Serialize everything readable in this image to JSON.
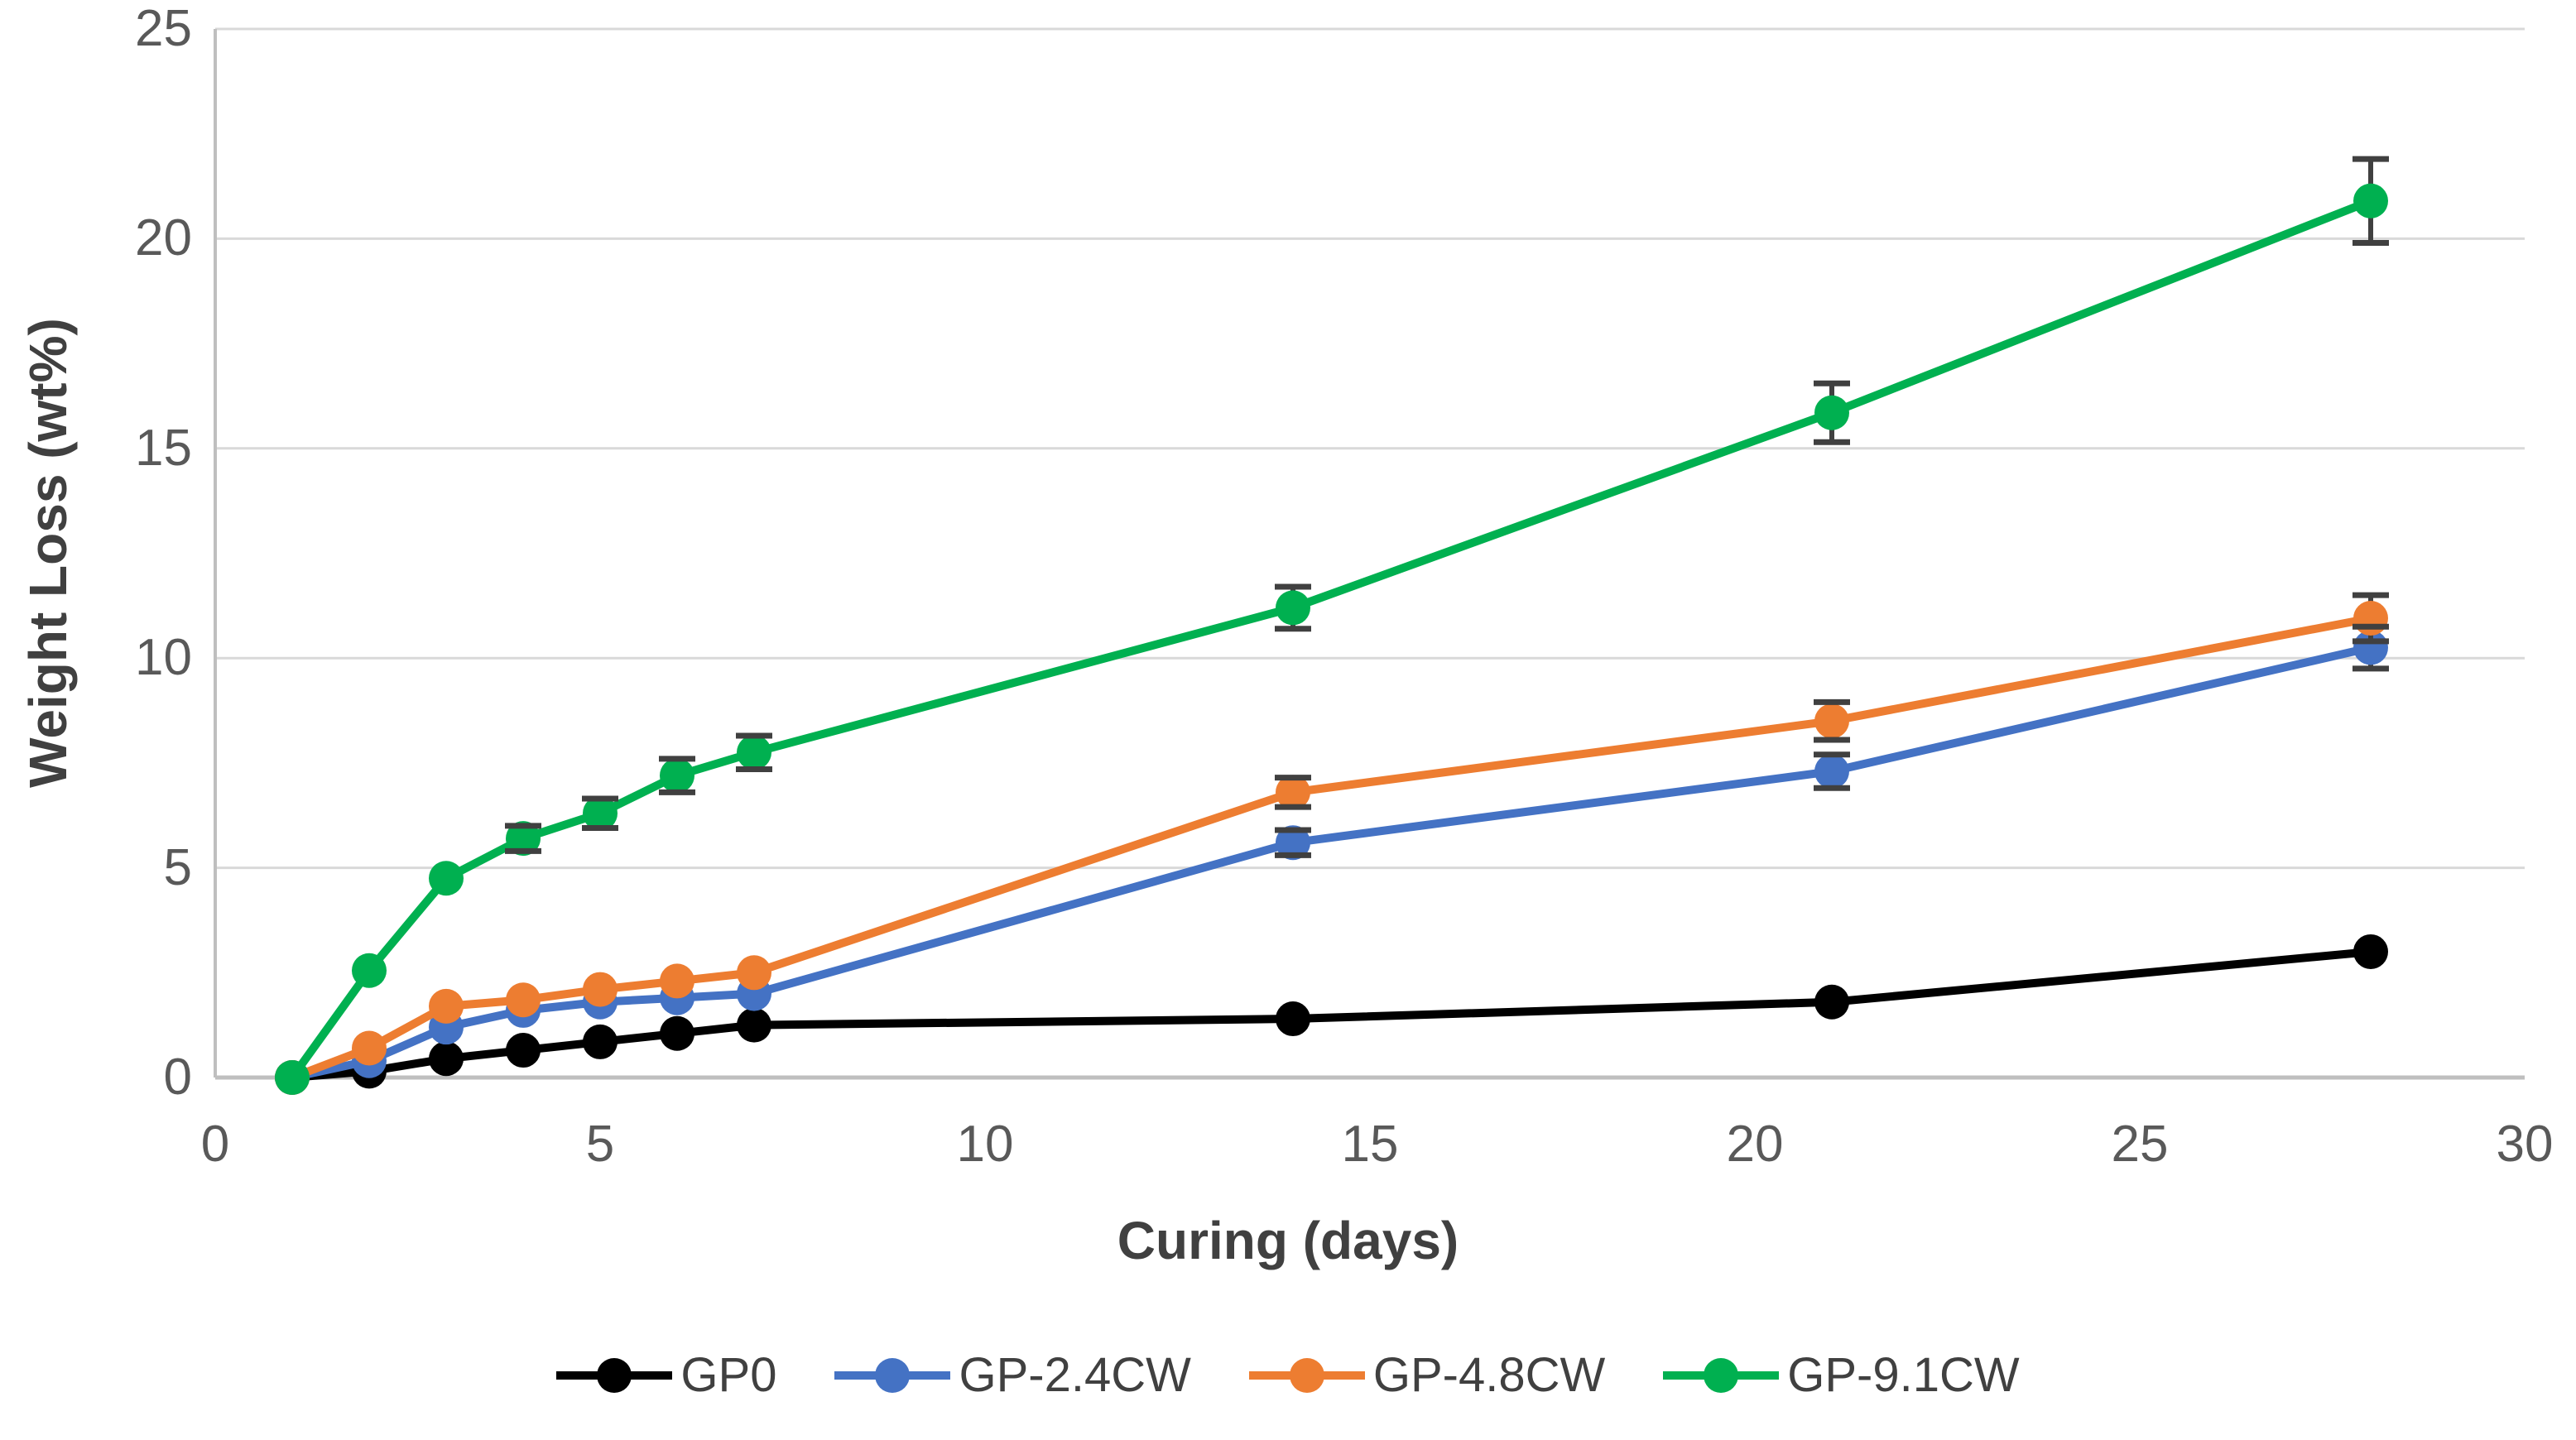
{
  "chart_data": {
    "type": "line",
    "x": [
      1,
      2,
      3,
      4,
      5,
      6,
      7,
      14,
      21,
      28
    ],
    "series": [
      {
        "name": "GP0",
        "color": "#000000",
        "values": [
          0,
          0.15,
          0.45,
          0.65,
          0.85,
          1.05,
          1.25,
          1.4,
          1.8,
          3.0
        ],
        "err": [
          0,
          0,
          0,
          0,
          0,
          0,
          0,
          0,
          0,
          0
        ]
      },
      {
        "name": "GP-2.4CW",
        "color": "#4472C4",
        "values": [
          0,
          0.4,
          1.2,
          1.6,
          1.8,
          1.9,
          2.0,
          5.6,
          7.3,
          10.25
        ],
        "err": [
          0,
          0,
          0,
          0,
          0,
          0,
          0,
          0.3,
          0.4,
          0.5
        ]
      },
      {
        "name": "GP-4.8CW",
        "color": "#ED7D31",
        "values": [
          0,
          0.7,
          1.7,
          1.85,
          2.1,
          2.3,
          2.5,
          6.8,
          8.5,
          10.95
        ],
        "err": [
          0,
          0,
          0,
          0,
          0,
          0,
          0,
          0.35,
          0.45,
          0.55
        ]
      },
      {
        "name": "GP-9.1CW",
        "color": "#00B050",
        "values": [
          0,
          2.55,
          4.75,
          5.7,
          6.3,
          7.2,
          7.75,
          11.2,
          15.85,
          20.9
        ],
        "err": [
          0,
          0,
          0,
          0.3,
          0.35,
          0.4,
          0.4,
          0.5,
          0.7,
          1.0
        ]
      }
    ],
    "xlabel": "Curing (days)",
    "ylabel": "Weight Loss (wt%)",
    "xlim": [
      0,
      30
    ],
    "ylim": [
      0,
      25
    ],
    "x_ticks": [
      0,
      5,
      10,
      15,
      20,
      25,
      30
    ],
    "y_ticks": [
      0,
      5,
      10,
      15,
      20,
      25
    ],
    "grid": "horizontal",
    "legend_position": "bottom",
    "colors": {
      "gridline": "#D9D9D9",
      "axis_line": "#BFBFBF",
      "tick_text": "#595959",
      "title_text": "#404040",
      "error_bar": "#404040"
    }
  }
}
